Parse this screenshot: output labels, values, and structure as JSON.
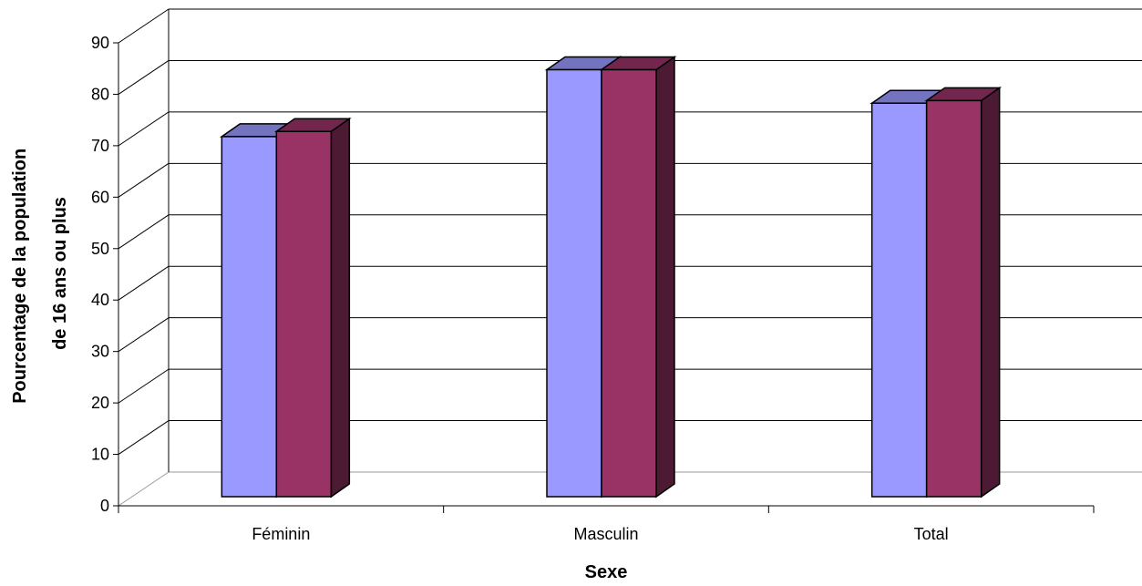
{
  "chart_data": {
    "type": "bar",
    "title": "",
    "xlabel": "Sexe",
    "ylabel_lines": [
      "Pourcentage de la population",
      "de 16 ans ou plus"
    ],
    "categories": [
      "Féminin",
      "Masculin",
      "Total"
    ],
    "series": [
      {
        "values": [
          70,
          83,
          76.5
        ],
        "color": "#9999ff",
        "top_color": "#7373bf",
        "side_color": "#59597f"
      },
      {
        "values": [
          71,
          83,
          77
        ],
        "color": "#993366",
        "top_color": "#73264d",
        "side_color": "#4d1a33"
      }
    ],
    "ylim": [
      0,
      90
    ],
    "yticks": [
      "0",
      "10",
      "20",
      "30",
      "40",
      "50",
      "60",
      "70",
      "80",
      "90"
    ],
    "grid": true,
    "three_d": true
  }
}
